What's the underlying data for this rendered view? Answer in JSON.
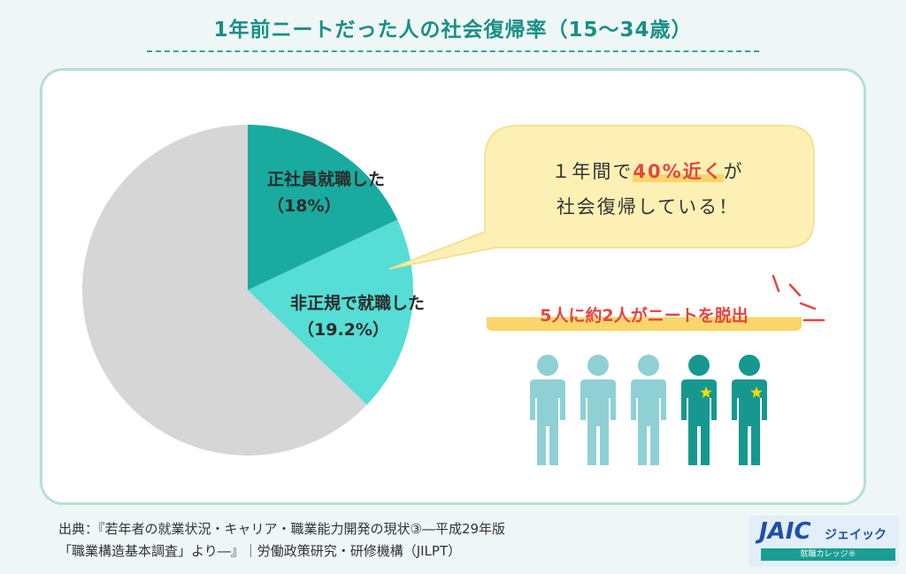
{
  "header": {
    "title": "1年前ニートだった人の社会復帰率（15～34歳）"
  },
  "chart_data": {
    "type": "pie",
    "slices": [
      {
        "label_line1": "正社員就職した",
        "label_line2": "（18%）",
        "value": 18,
        "color": "#1aaba0"
      },
      {
        "label_line1": "非正規で就職した",
        "label_line2": "（19.2%）",
        "value": 19.2,
        "color": "#55ddd6"
      },
      {
        "value": 62.8,
        "color": "#d6d6d6"
      }
    ],
    "start": "top",
    "direction": "clockwise"
  },
  "callout": {
    "line1_pre": "１年間で",
    "line1_highlight": "40%近く",
    "line1_post": "が",
    "line2": "社会復帰している！"
  },
  "ratio_text": "5人に約2人がニートを脱出",
  "people": {
    "total": 5,
    "highlighted": 2,
    "light_color": "#8fd0d4",
    "dark_color": "#17988e",
    "star_color": "#f5d90a"
  },
  "source": {
    "line1": "出典：『若年者の就業状況・キャリア・職業能力開発の現状③―平成29年版",
    "line2": "「職業構造基本調査」より―』｜労働政策研究・研修機構（JILPT）"
  },
  "logo": {
    "main": "JAIC",
    "kana": "ジェイック",
    "sub": "就職カレッジ®"
  }
}
